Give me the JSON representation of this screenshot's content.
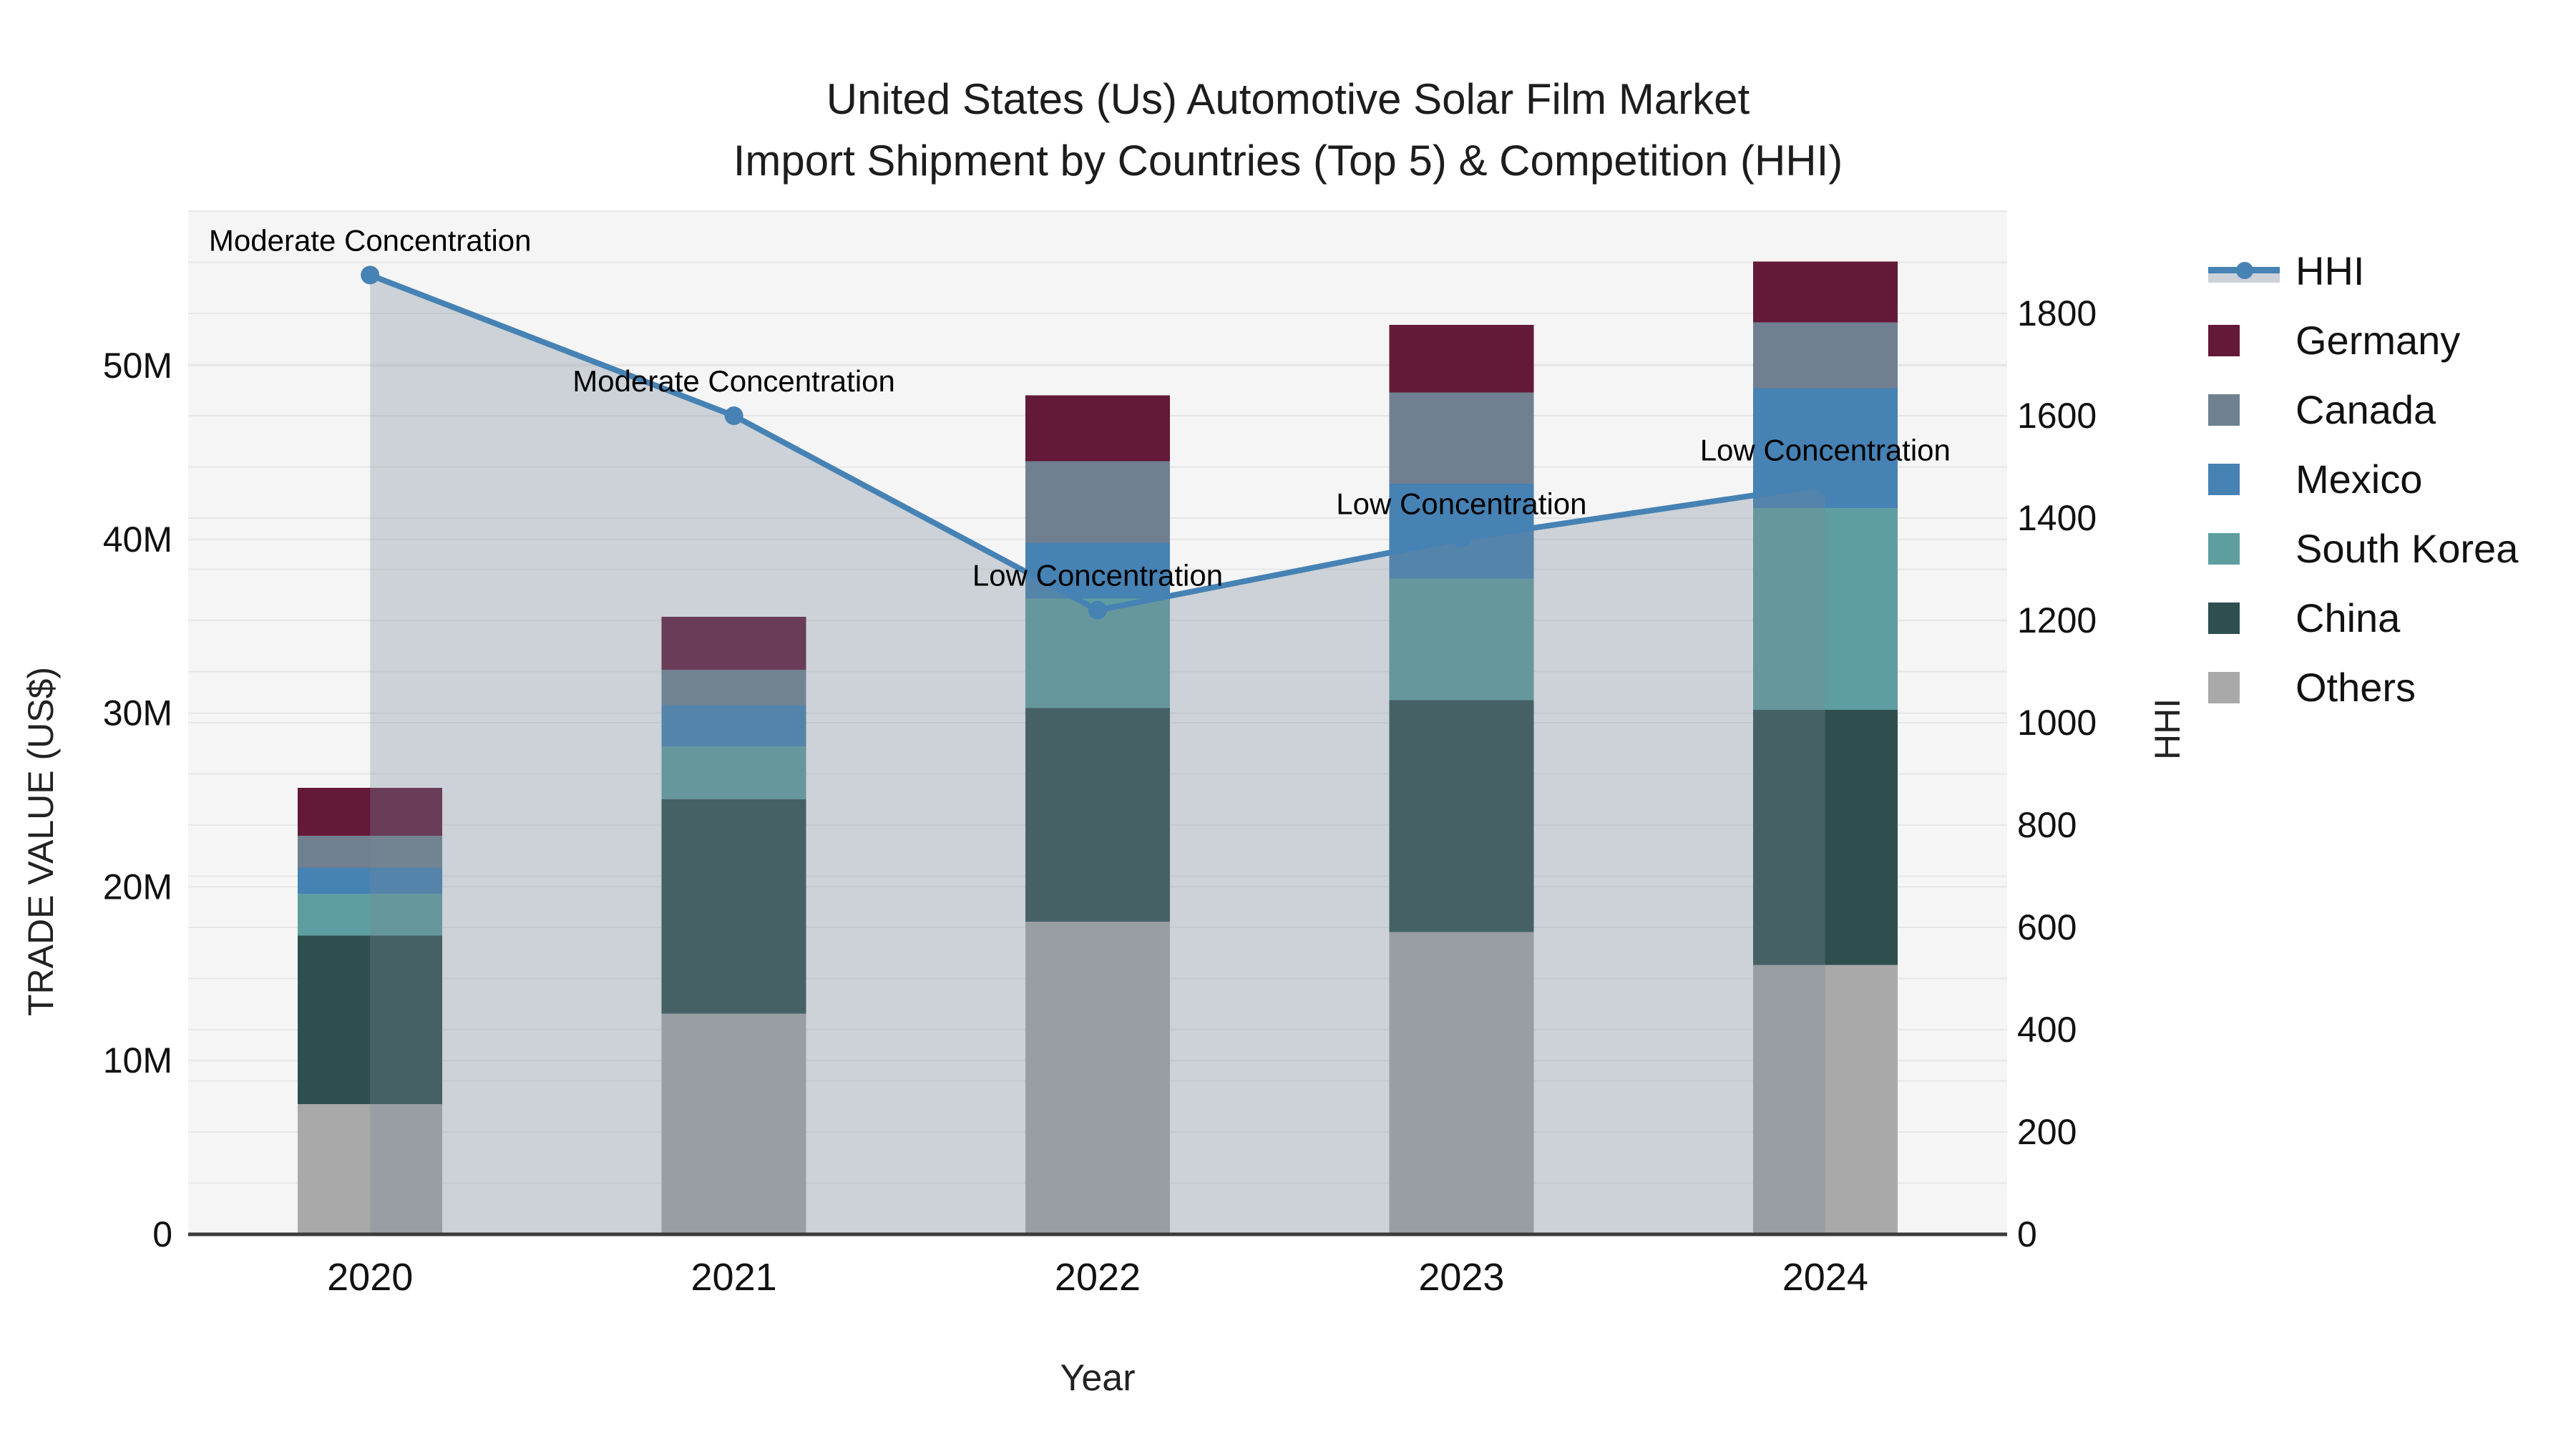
{
  "title": {
    "line1": "United States (Us) Automotive Solar Film Market",
    "line2": "Import Shipment by Countries (Top 5) & Competition (HHI)"
  },
  "axes": {
    "x": {
      "title": "Year",
      "tick_labels": [
        "2020",
        "2021",
        "2022",
        "2023",
        "2024"
      ]
    },
    "y_left": {
      "title": "TRADE VALUE (US$)",
      "tick_labels": [
        "0",
        "10M",
        "20M",
        "30M",
        "40M",
        "50M"
      ],
      "tick_values_millions": [
        0,
        10,
        20,
        30,
        40,
        50
      ],
      "range_millions": [
        0,
        58.9
      ]
    },
    "y_right": {
      "title": "HHI",
      "tick_labels": [
        "0",
        "200",
        "400",
        "600",
        "800",
        "1000",
        "1200",
        "1400",
        "1600",
        "1800"
      ],
      "tick_values": [
        0,
        200,
        400,
        600,
        800,
        1000,
        1200,
        1400,
        1600,
        1800
      ],
      "range": [
        0,
        2000
      ],
      "grid_step": 100
    }
  },
  "colors": {
    "plot_bg": "#f5f5f5",
    "grid": "#e7e7e7",
    "axis_line": "#3b3b3b",
    "tick_text": "#111111",
    "hhi_line": "#4682b4",
    "hhi_marker": "#4682b4",
    "hhi_area": "rgba(119,136,153,0.32)",
    "annotation_text": "#000000"
  },
  "legend": {
    "items": [
      {
        "label": "HHI",
        "type": "line",
        "color": "#4682b4",
        "band_color": "#ccd1da"
      },
      {
        "label": "Germany",
        "type": "swatch",
        "color": "#641938"
      },
      {
        "label": "Canada",
        "type": "swatch",
        "color": "#708090"
      },
      {
        "label": "Mexico",
        "type": "swatch",
        "color": "#4682b4"
      },
      {
        "label": "South Korea",
        "type": "swatch",
        "color": "#5f9ea0"
      },
      {
        "label": "China",
        "type": "swatch",
        "color": "#2f4f4f"
      },
      {
        "label": "Others",
        "type": "swatch",
        "color": "#a9a9a9"
      }
    ]
  },
  "chart_data": {
    "type": "bar",
    "subtype": "stacked-bars-with-line",
    "categories": [
      "2020",
      "2021",
      "2022",
      "2023",
      "2024"
    ],
    "bar_value_unit": "million US$",
    "series": [
      {
        "name": "Others",
        "color": "#a9a9a9",
        "values": [
          7.5,
          12.7,
          18.0,
          17.4,
          15.5
        ]
      },
      {
        "name": "China",
        "color": "#2f4f4f",
        "values": [
          9.7,
          12.35,
          12.3,
          13.35,
          14.7
        ]
      },
      {
        "name": "South Korea",
        "color": "#5f9ea0",
        "values": [
          2.4,
          3.05,
          6.3,
          7.0,
          11.6
        ]
      },
      {
        "name": "Mexico",
        "color": "#4682b4",
        "values": [
          1.5,
          2.35,
          3.2,
          5.45,
          6.9
        ]
      },
      {
        "name": "Canada",
        "color": "#708090",
        "values": [
          1.85,
          2.05,
          4.7,
          5.25,
          3.8
        ]
      },
      {
        "name": "Germany",
        "color": "#641938",
        "values": [
          2.75,
          3.05,
          3.8,
          3.9,
          3.5
        ]
      }
    ],
    "bar_totals_millions": [
      25.7,
      35.55,
      48.3,
      52.35,
      56.0
    ],
    "line": {
      "name": "HHI",
      "axis": "right",
      "values": [
        1875,
        1600,
        1220,
        1360,
        1465
      ],
      "annotations": [
        "Moderate Concentration",
        "Moderate Concentration",
        "Low Concentration",
        "Low Concentration",
        "Low Concentration"
      ]
    },
    "title": "United States (Us) Automotive Solar Film Market Import Shipment by Countries (Top 5) & Competition (HHI)",
    "xlabel": "Year",
    "ylabel_left": "TRADE VALUE (US$)",
    "ylabel_right": "HHI",
    "ylim_left_millions": [
      0,
      58.9
    ],
    "ylim_right": [
      0,
      2000
    ],
    "grid": true,
    "legend_position": "right"
  }
}
